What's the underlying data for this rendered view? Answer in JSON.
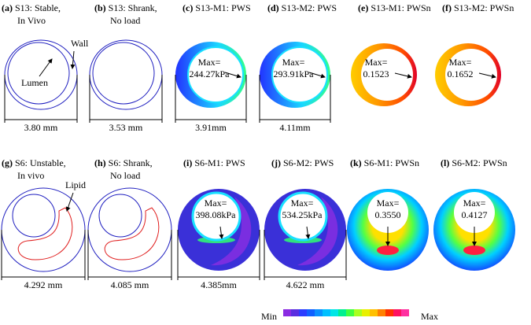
{
  "panels": [
    {
      "label": "(a)",
      "title": [
        "S13: Stable,",
        "In Vivo"
      ],
      "dimension": "3.80 mm",
      "notes": [
        "Wall",
        "Lumen"
      ]
    },
    {
      "label": "(b)",
      "title": [
        "S13: Shrank,",
        "No load"
      ],
      "dimension": "3.53 mm"
    },
    {
      "label": "(c)",
      "title": [
        "S13-M1: PWS"
      ],
      "dimension": "3.91mm",
      "notes": [
        "Max=",
        "244.27kPa"
      ]
    },
    {
      "label": "(d)",
      "title": [
        "S13-M2: PWS"
      ],
      "dimension": "4.11mm",
      "notes": [
        "Max=",
        "293.91kPa"
      ]
    },
    {
      "label": "(e)",
      "title": [
        "S13-M1: PWSn"
      ],
      "notes": [
        "Max=",
        "0.1523"
      ]
    },
    {
      "label": "(f)",
      "title": [
        "S13-M2: PWSn"
      ],
      "notes": [
        "Max=",
        "0.1652"
      ]
    },
    {
      "label": "(g)",
      "title": [
        "S6: Unstable,",
        "In vivo"
      ],
      "dimension": "4.292 mm",
      "notes": [
        "Lipid"
      ]
    },
    {
      "label": "(h)",
      "title": [
        "S6: Shrank,",
        "No load"
      ],
      "dimension": "4.085 mm"
    },
    {
      "label": "(i)",
      "title": [
        "S6-M1: PWS"
      ],
      "dimension": "4.385mm",
      "notes": [
        "Max=",
        "398.08kPa"
      ]
    },
    {
      "label": "(j)",
      "title": [
        "S6-M2: PWS"
      ],
      "dimension": "4.622 mm",
      "notes": [
        "Max=",
        "534.25kPa"
      ]
    },
    {
      "label": "(k)",
      "title": [
        "S6-M1: PWSn"
      ],
      "notes": [
        "Max=",
        "0.3550"
      ]
    },
    {
      "label": "(l)",
      "title": [
        "S6-M2: PWSn"
      ],
      "notes": [
        "Max=",
        "0.4127"
      ]
    }
  ],
  "colorbar": {
    "min": "Min",
    "max": "Max"
  }
}
